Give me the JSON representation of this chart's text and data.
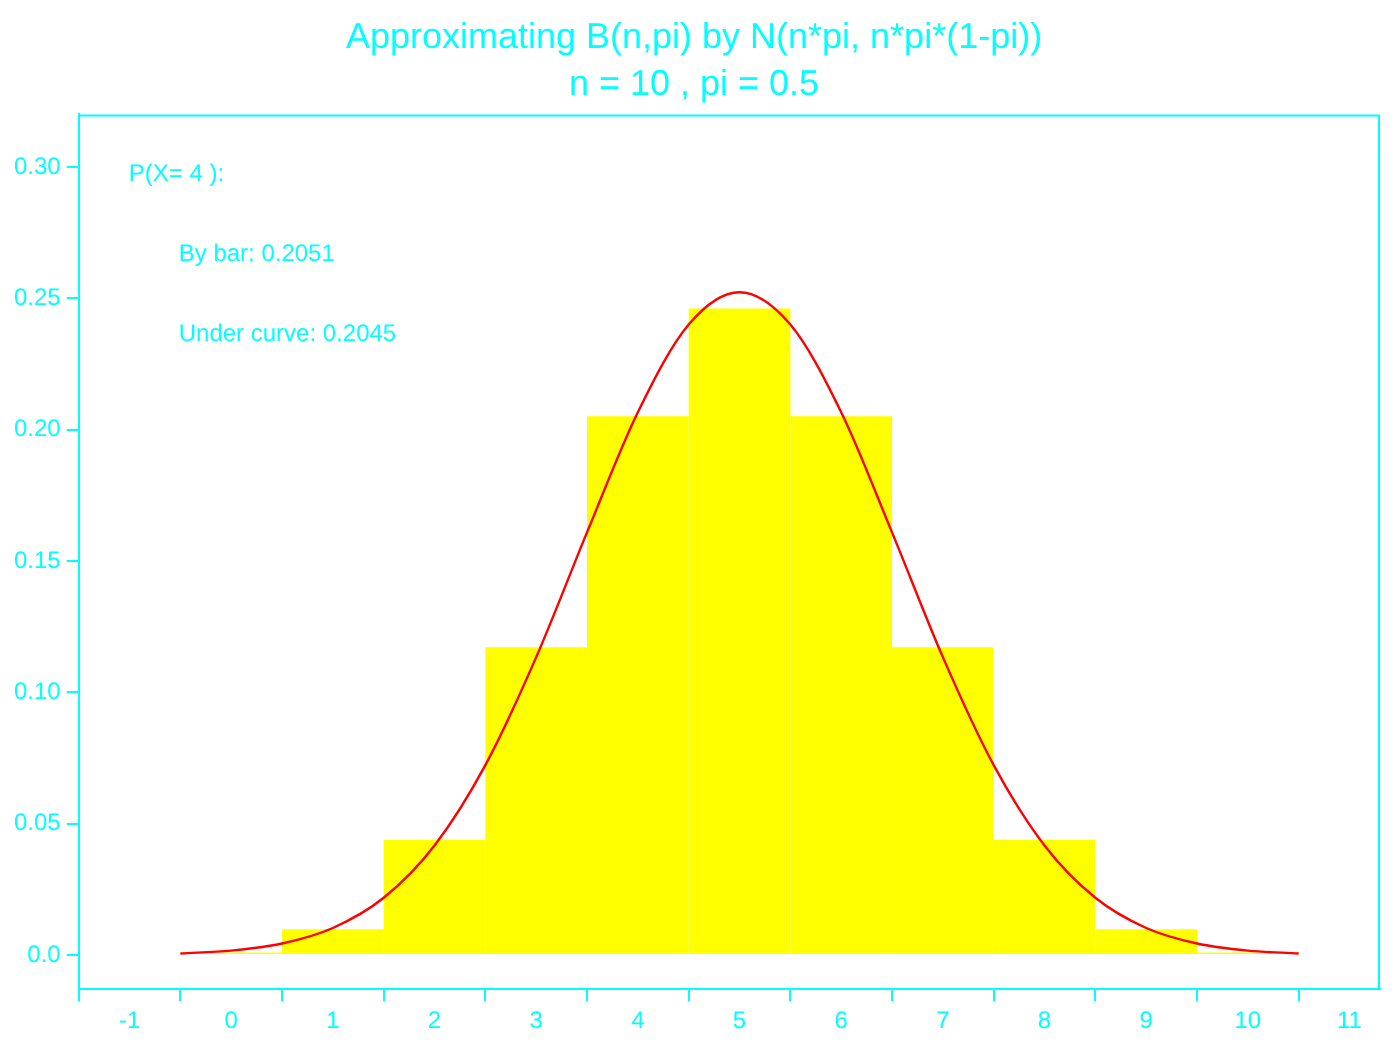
{
  "chart_data": {
    "type": "histogram",
    "title": "Approximating B(n,pi) by N(n*pi, n*pi*(1-pi))",
    "subtitle": "n = 10 , pi = 0.5",
    "bins": [
      -0.5,
      0.5,
      1.5,
      2.5,
      3.5,
      4.5,
      5.5,
      6.5,
      7.5,
      8.5,
      9.5,
      10.5
    ],
    "values": [
      0.001,
      0.0098,
      0.0439,
      0.1172,
      0.2051,
      0.2461,
      0.2051,
      0.1172,
      0.0439,
      0.0098,
      0.001
    ],
    "color": "#ffff00",
    "series": [
      {
        "type": "line",
        "color": "#ff0000",
        "x": [
          -0.5,
          0,
          0.5,
          1,
          1.5,
          2,
          2.5,
          3,
          3.5,
          4,
          4.5,
          5,
          5.5,
          6,
          6.5,
          7,
          7.5,
          8,
          8.5,
          9,
          9.5,
          10,
          10.5
        ],
        "values": [
          0.0006,
          0.0017,
          0.0044,
          0.0103,
          0.0218,
          0.0417,
          0.0723,
          0.1134,
          0.1609,
          0.2066,
          0.24,
          0.2523,
          0.24,
          0.2066,
          0.1609,
          0.1134,
          0.0723,
          0.0417,
          0.0218,
          0.0103,
          0.0044,
          0.0017,
          0.0006
        ]
      }
    ],
    "annotations": [
      "P(X= 4 ):",
      "By bar: 0.2051",
      "Under curve: 0.2045"
    ],
    "xlim": [
      -1.5,
      11.3
    ],
    "xticks": [
      -1,
      0,
      1,
      2,
      3,
      4,
      5,
      6,
      7,
      8,
      9,
      10,
      11
    ],
    "ylim": [
      -0.013,
      0.32
    ],
    "yticks": [
      {
        "value": 0,
        "label": "0.0"
      },
      0.05,
      {
        "value": 0.1,
        "label": "0.10"
      },
      0.15,
      {
        "value": 0.2,
        "label": "0.20"
      },
      0.25,
      {
        "value": 0.3,
        "label": "0.30"
      }
    ],
    "grid": false,
    "legend": false,
    "marker": "none",
    "line_style": "solid"
  }
}
